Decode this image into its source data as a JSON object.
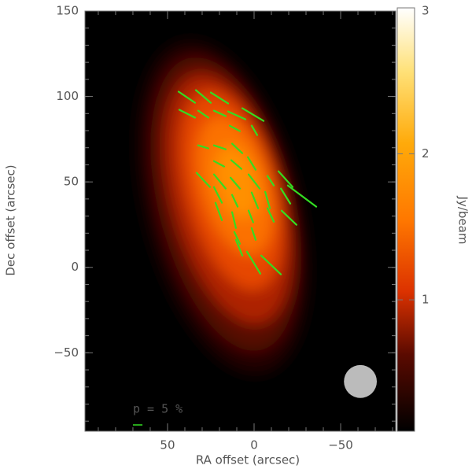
{
  "chart_data": {
    "type": "polarization-map",
    "xlabel": "RA offset (arcsec)",
    "ylabel": "Dec offset (arcsec)",
    "colorbar_label": "Jy/beam",
    "xlim": [
      97.7,
      -81.8
    ],
    "ylim": [
      -95.9,
      150
    ],
    "xticks": [
      50,
      0,
      {
        "value": -50,
        "label": "−50"
      }
    ],
    "yticks": [
      {
        "value": -50,
        "label": "−50"
      },
      0,
      50,
      100,
      150
    ],
    "minor_tick_step": 10,
    "clim": [
      0.1,
      3
    ],
    "cticks": [
      1,
      2,
      3
    ],
    "vector_color": "#33dd22",
    "emission": {
      "ra": [
        18,
        17,
        15,
        13,
        11,
        10
      ],
      "dec": [
        35,
        37,
        40,
        45,
        48,
        50
      ],
      "major": [
        100,
        88,
        75,
        60,
        42,
        22
      ],
      "minor": [
        45,
        38,
        32,
        26,
        20,
        12
      ],
      "pa": [
        14,
        14,
        15,
        15,
        16,
        16
      ],
      "level": [
        0.3,
        0.6,
        0.9,
        1.2,
        1.5,
        1.8
      ]
    },
    "vectors": {
      "ra0": [
        43.6,
        33.6,
        25,
        43.2,
        32.3,
        23.2,
        15,
        6.8,
        1.4,
        14.1,
        32.3,
        23.2,
        12.7,
        23.2,
        13.2,
        3.6,
        33.2,
        23.2,
        13.6,
        3.2,
        -7.7,
        -14.1,
        -19.5,
        23.2,
        12.7,
        1.4,
        -6.4,
        -15.5,
        22.3,
        12.7,
        3.2,
        -7.7,
        -15.9,
        11.4,
        1.4,
        10.5,
        4.1,
        -4.1
      ],
      "dec0": [
        102.8,
        103.7,
        102.3,
        92.2,
        91.7,
        91.7,
        91.2,
        93.1,
        82.9,
        82.9,
        71.4,
        71.4,
        72.4,
        62.2,
        62.7,
        64.5,
        55.3,
        54.4,
        52.5,
        54.4,
        53.5,
        56.2,
        47.9,
        47,
        42.4,
        43.8,
        44.2,
        46.1,
        37.8,
        32.3,
        33.2,
        34.6,
        33.2,
        20.7,
        23,
        16.1,
        9.2,
        6.9
      ],
      "ra1": [
        34.1,
        25,
        15,
        34.1,
        26.4,
        16.4,
        5,
        -5.5,
        -1.8,
        8.2,
        26.4,
        16.4,
        6.8,
        17.3,
        7.3,
        -0.9,
        25.5,
        16.4,
        8.2,
        -3.2,
        -11.4,
        -22.3,
        -35.9,
        18.6,
        9.5,
        -2.3,
        -9.1,
        -20.9,
        18.6,
        10.5,
        0.5,
        -11.4,
        -24.5,
        8.2,
        -0.9,
        6.8,
        -3.6,
        -15.5
      ],
      "dec1": [
        96.3,
        96.3,
        95.9,
        87.6,
        87.6,
        88.5,
        86.6,
        85.7,
        77.4,
        79.7,
        69.6,
        69.1,
        66.8,
        59,
        57.6,
        57.1,
        47,
        46.1,
        46.1,
        46.1,
        47.9,
        47,
        35.5,
        37.8,
        35.5,
        34.6,
        34.6,
        37.3,
        27.6,
        23,
        26.3,
        26.7,
        24.9,
        13.8,
        16.1,
        6.9,
        -3.7,
        -4.1
      ]
    },
    "scale_bar": {
      "label": "p = 5 %",
      "p": 5,
      "arcsec_per_percent": 1.1,
      "ra": 70,
      "dec": -83
    },
    "beam": {
      "ra": -61.4,
      "dec": -66.8,
      "diameter": 19,
      "color": "#bbbbbb"
    }
  }
}
